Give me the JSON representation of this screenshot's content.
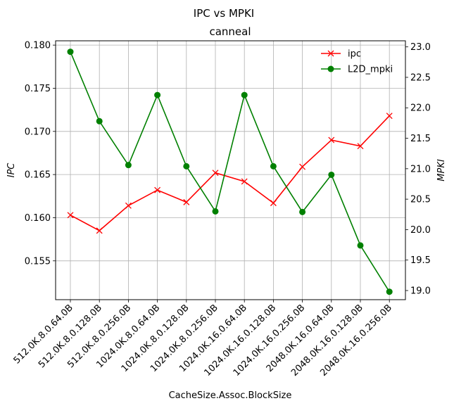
{
  "chart_data": {
    "type": "line",
    "suptitle": "IPC vs MPKI",
    "title": "canneal",
    "xlabel": "CacheSize.Assoc.BlockSize",
    "ylabel_left": "IPC",
    "ylabel_right": "MPKI",
    "categories": [
      "512.0K.8.0.64.0B",
      "512.0K.8.0.128.0B",
      "512.0K.8.0.256.0B",
      "1024.0K.8.0.64.0B",
      "1024.0K.8.0.128.0B",
      "1024.0K.8.0.256.0B",
      "1024.0K.16.0.64.0B",
      "1024.0K.16.0.128.0B",
      "1024.0K.16.0.256.0B",
      "2048.0K.16.0.64.0B",
      "2048.0K.16.0.128.0B",
      "2048.0K.16.0.256.0B"
    ],
    "ylim_left": [
      0.1505,
      0.1805
    ],
    "ylim_right": [
      18.85,
      23.1
    ],
    "yticks_left": [
      "0.155",
      "0.160",
      "0.165",
      "0.170",
      "0.175",
      "0.180"
    ],
    "yticks_right": [
      "19.0",
      "19.5",
      "20.0",
      "20.5",
      "21.0",
      "21.5",
      "22.0",
      "22.5",
      "23.0"
    ],
    "grid": true,
    "legend_position": "upper right",
    "series": [
      {
        "name": "ipc",
        "axis": "left",
        "color": "#ff0000",
        "marker": "x",
        "values": [
          0.1603,
          0.1585,
          0.1614,
          0.1632,
          0.1618,
          0.1652,
          0.1642,
          0.1617,
          0.1659,
          0.169,
          0.1683,
          0.1718
        ]
      },
      {
        "name": "L2D_mpki",
        "axis": "right",
        "color": "#008000",
        "marker": "o",
        "values": [
          22.92,
          21.78,
          21.06,
          22.21,
          21.04,
          20.3,
          22.21,
          21.04,
          20.29,
          20.9,
          19.74,
          18.98
        ]
      }
    ]
  }
}
